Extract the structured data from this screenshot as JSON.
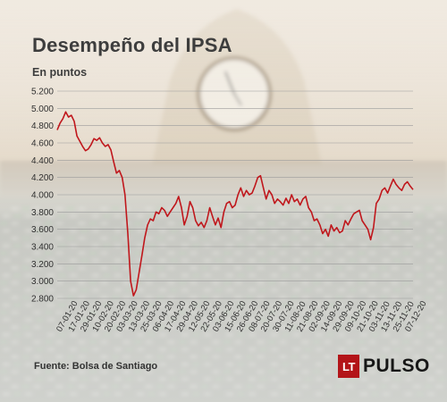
{
  "header": {
    "title": "Desempeño del IPSA",
    "unit_label": "En puntos"
  },
  "footer": {
    "source": "Fuente: Bolsa de Santiago",
    "logo_mark": "LT",
    "logo_word": "PULSO"
  },
  "colors": {
    "line": "#c0171c",
    "grid": "#9b9b9b",
    "text": "#3d3d3d"
  },
  "chart_data": {
    "type": "line",
    "title": "Desempeño del IPSA",
    "ylabel": "En puntos",
    "ylim": [
      2800,
      5200
    ],
    "yticks": [
      "5.200",
      "5.000",
      "4.800",
      "4.600",
      "4.400",
      "4.200",
      "4.000",
      "3.800",
      "3.600",
      "3.400",
      "3.200",
      "3.000",
      "2.800"
    ],
    "xticks": [
      "07-01-20",
      "17-01-20",
      "29-01-20",
      "10-02-20",
      "20-02-20",
      "03-03-20",
      "13-03-20",
      "25-03-20",
      "06-04-20",
      "17-04-20",
      "29-04-20",
      "12-05-20",
      "22-05-20",
      "03-06-20",
      "15-06-20",
      "26-06-20",
      "08-07-20",
      "20-07-20",
      "30-07-20",
      "11-08-20",
      "21-08-20",
      "02-09-20",
      "14-09-20",
      "29-09-20",
      "09-10-20",
      "21-10-20",
      "03-11-20",
      "13-11-20",
      "25-11-20",
      "07-12-20"
    ],
    "grid": true,
    "series": [
      {
        "values": [
          4750,
          4830,
          4880,
          4960,
          4900,
          4920,
          4850,
          4680,
          4620,
          4560,
          4510,
          4530,
          4580,
          4650,
          4630,
          4660,
          4600,
          4560,
          4580,
          4520,
          4380,
          4250,
          4280,
          4200,
          4000,
          3550,
          3000,
          2830,
          2900,
          3100,
          3300,
          3500,
          3650,
          3720,
          3700,
          3800,
          3780,
          3850,
          3820,
          3750,
          3800,
          3850,
          3900,
          3980,
          3850,
          3650,
          3750,
          3920,
          3850,
          3700,
          3640,
          3680,
          3620,
          3700,
          3850,
          3750,
          3650,
          3730,
          3620,
          3800,
          3900,
          3920,
          3850,
          3880,
          4000,
          4080,
          3980,
          4050,
          4000,
          4020,
          4100,
          4200,
          4220,
          4080,
          3950,
          4050,
          4000,
          3900,
          3950,
          3920,
          3880,
          3960,
          3900,
          4000,
          3920,
          3950,
          3880,
          3950,
          3980,
          3850,
          3800,
          3700,
          3720,
          3650,
          3550,
          3600,
          3520,
          3650,
          3580,
          3620,
          3560,
          3580,
          3700,
          3650,
          3720,
          3780,
          3800,
          3820,
          3700,
          3650,
          3600,
          3480,
          3620,
          3900,
          3950,
          4050,
          4080,
          4020,
          4100,
          4180,
          4120,
          4080,
          4050,
          4120,
          4150,
          4100,
          4060
        ]
      }
    ]
  }
}
